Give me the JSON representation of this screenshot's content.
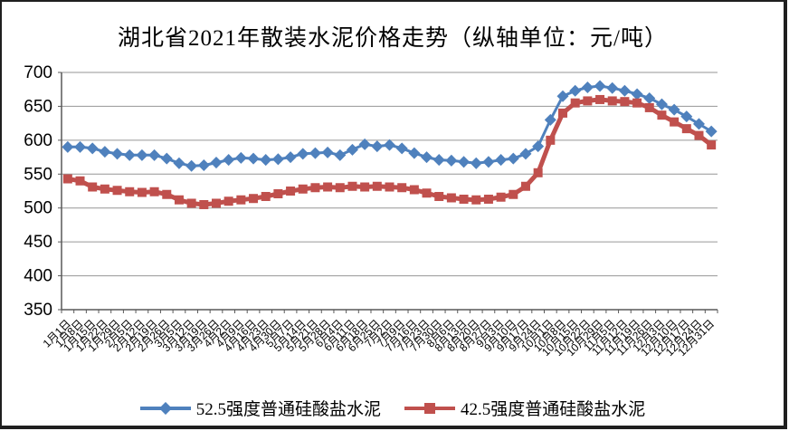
{
  "chart_data": {
    "type": "line",
    "title": "湖北省2021年散装水泥价格走势（纵轴单位：元/吨）",
    "xlabel": "",
    "ylabel": "元/吨",
    "ylim": [
      350,
      700
    ],
    "yticks": [
      350,
      400,
      450,
      500,
      550,
      600,
      650,
      700
    ],
    "grid": true,
    "legend_position": "bottom",
    "categories": [
      "1月1日",
      "1月8日",
      "1月15日",
      "1月22日",
      "1月29日",
      "2月5日",
      "2月12日",
      "2月19日",
      "2月26日",
      "3月5日",
      "3月12日",
      "3月19日",
      "3月26日",
      "4月2日",
      "4月9日",
      "4月16日",
      "4月23日",
      "4月30日",
      "5月7日",
      "5月14日",
      "5月21日",
      "5月28日",
      "6月4日",
      "6月11日",
      "6月18日",
      "6月25日",
      "7月2日",
      "7月9日",
      "7月16日",
      "7月23日",
      "7月30日",
      "8月6日",
      "8月13日",
      "8月20日",
      "8月27日",
      "9月3日",
      "9月10日",
      "9月17日",
      "9月24日",
      "10月1日",
      "10月8日",
      "10月15日",
      "10月22日",
      "10月29日",
      "11月5日",
      "11月12日",
      "11月19日",
      "11月26日",
      "12月3日",
      "12月10日",
      "12月17日",
      "12月24日",
      "12月31日"
    ],
    "series": [
      {
        "name": "52.5强度普通硅酸盐水泥",
        "color": "#4F81BD",
        "marker": "diamond",
        "line_width": 3,
        "values": [
          590,
          590,
          588,
          583,
          580,
          578,
          578,
          578,
          573,
          566,
          562,
          563,
          567,
          571,
          574,
          573,
          571,
          572,
          575,
          580,
          581,
          582,
          578,
          586,
          594,
          591,
          593,
          588,
          581,
          575,
          571,
          570,
          568,
          566,
          568,
          571,
          573,
          580,
          591,
          630,
          665,
          673,
          678,
          680,
          677,
          673,
          668,
          662,
          653,
          645,
          635,
          624,
          613
        ]
      },
      {
        "name": "42.5强度普通硅酸盐水泥",
        "color": "#C0504D",
        "marker": "square",
        "line_width": 5,
        "values": [
          543,
          540,
          531,
          528,
          526,
          524,
          523,
          524,
          520,
          512,
          507,
          505,
          507,
          510,
          512,
          514,
          517,
          521,
          525,
          528,
          530,
          531,
          530,
          532,
          531,
          532,
          531,
          530,
          527,
          522,
          517,
          515,
          513,
          512,
          513,
          516,
          520,
          532,
          552,
          600,
          640,
          655,
          658,
          660,
          658,
          657,
          655,
          648,
          637,
          627,
          617,
          607,
          593
        ]
      }
    ],
    "axis_color": "#595959",
    "grid_color": "#969696",
    "tick_label_color": "#000000"
  }
}
